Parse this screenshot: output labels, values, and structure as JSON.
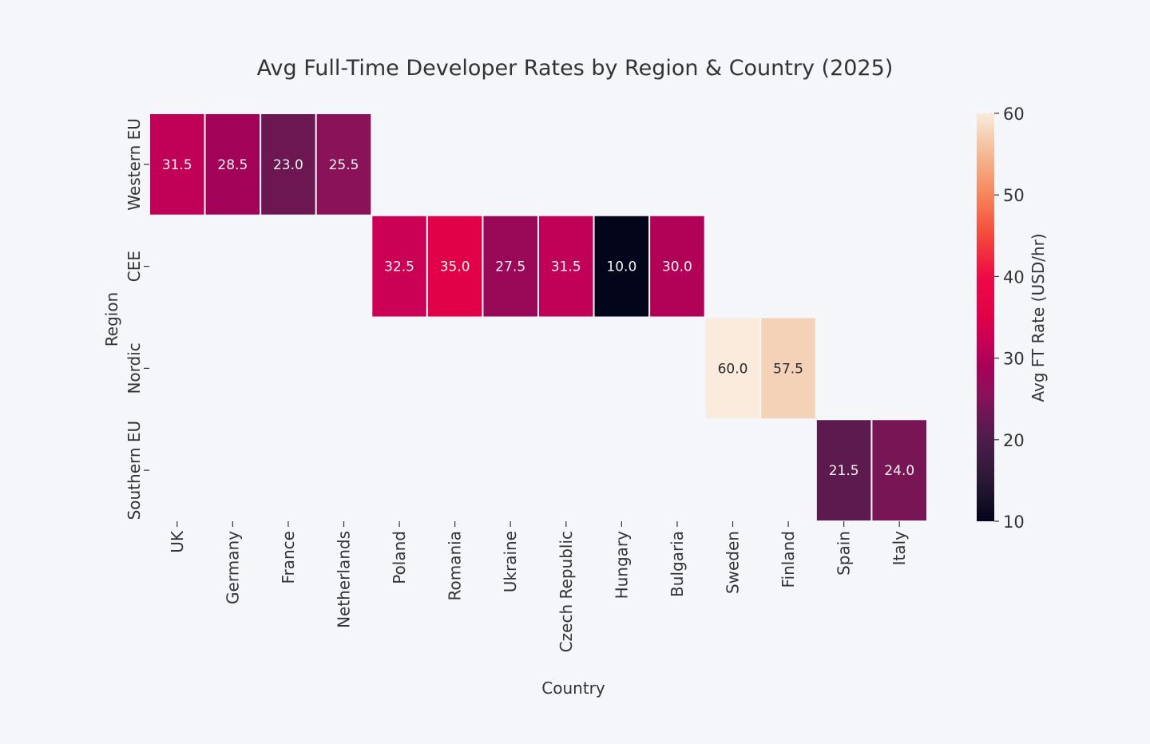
{
  "chart_data": {
    "type": "heatmap",
    "title": "Avg Full-Time Developer Rates by Region & Country (2025)",
    "xlabel": "Country",
    "ylabel": "Region",
    "colorbar_label": "Avg FT Rate (USD/hr)",
    "colormap": "rocket",
    "color_range": [
      10,
      60
    ],
    "colorbar_ticks": [
      10,
      20,
      30,
      40,
      50,
      60
    ],
    "categories_x": [
      "UK",
      "Germany",
      "France",
      "Netherlands",
      "Poland",
      "Romania",
      "Ukraine",
      "Czech Republic",
      "Hungary",
      "Bulgaria",
      "Sweden",
      "Finland",
      "Spain",
      "Italy"
    ],
    "categories_y": [
      "Western EU",
      "CEE",
      "Nordic",
      "Southern EU"
    ],
    "values": [
      [
        31.5,
        28.5,
        23.0,
        25.5,
        null,
        null,
        null,
        null,
        null,
        null,
        null,
        null,
        null,
        null
      ],
      [
        null,
        null,
        null,
        null,
        32.5,
        35.0,
        27.5,
        31.5,
        10.0,
        30.0,
        null,
        null,
        null,
        null
      ],
      [
        null,
        null,
        null,
        null,
        null,
        null,
        null,
        null,
        null,
        null,
        60.0,
        57.5,
        null,
        null
      ],
      [
        null,
        null,
        null,
        null,
        null,
        null,
        null,
        null,
        null,
        null,
        null,
        null,
        21.5,
        24.0
      ]
    ]
  }
}
